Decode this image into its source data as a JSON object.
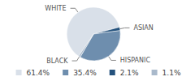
{
  "chart_data": {
    "type": "pie",
    "categories": [
      "WHITE",
      "HISPANIC",
      "ASIAN",
      "BLACK"
    ],
    "values": [
      61.4,
      35.4,
      2.1,
      1.1
    ],
    "value_labels": [
      "61.4%",
      "35.4%",
      "2.1%",
      "1.1%"
    ],
    "colors": [
      "#d9e0e9",
      "#6e8eae",
      "#24527d",
      "#a9b9cb"
    ],
    "legend": "bottom"
  }
}
